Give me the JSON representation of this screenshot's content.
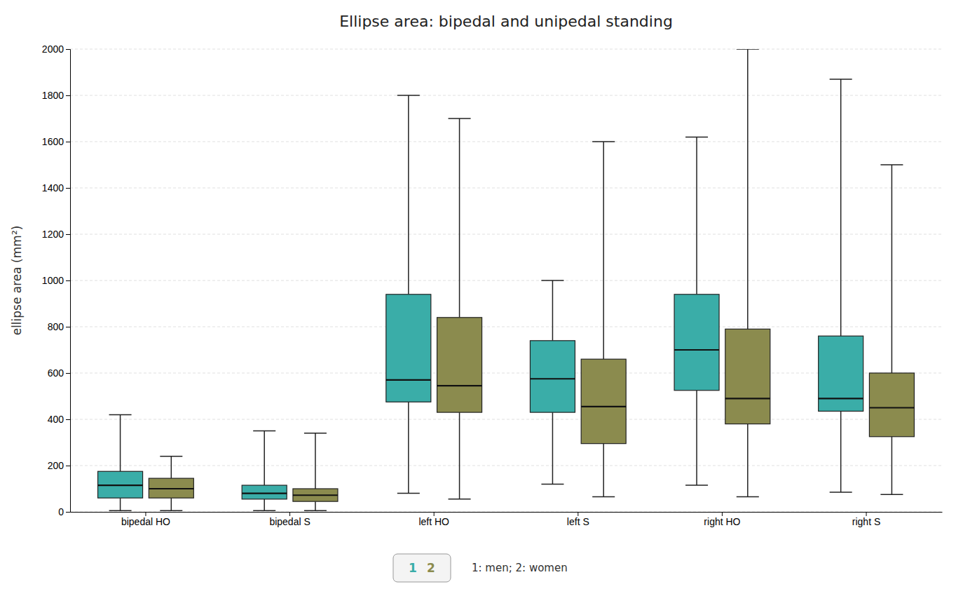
{
  "chart_data": {
    "type": "box",
    "title": "Ellipse area: bipedal and unipedal standing",
    "ylabel": "ellipse area (mm²)",
    "categories": [
      "bipedal HO",
      "bipedal S",
      "left HO",
      "left S",
      "right HO",
      "right S"
    ],
    "series": [
      {
        "name": "1",
        "color": "#3aada8",
        "q1": [
          60,
          55,
          475,
          430,
          525,
          435
        ],
        "median": [
          115,
          80,
          570,
          575,
          700,
          490
        ],
        "q3": [
          175,
          115,
          940,
          740,
          940,
          760
        ],
        "whislo": [
          5,
          5,
          80,
          120,
          115,
          85
        ],
        "whishi": [
          420,
          350,
          1800,
          1000,
          1620,
          1870
        ]
      },
      {
        "name": "2",
        "color": "#8b8b4e",
        "q1": [
          60,
          45,
          430,
          295,
          380,
          325
        ],
        "median": [
          100,
          72,
          545,
          455,
          490,
          450
        ],
        "q3": [
          145,
          100,
          840,
          660,
          790,
          600
        ],
        "whislo": [
          5,
          5,
          55,
          65,
          65,
          75
        ],
        "whishi": [
          240,
          340,
          1700,
          1600,
          2000,
          1500
        ]
      }
    ],
    "annotations": [
      "1: men; 2: women"
    ],
    "ylim": [
      0,
      2000
    ],
    "yticks": [
      0,
      200,
      400,
      600,
      800,
      1000,
      1200,
      1400,
      1600,
      1800,
      2000
    ],
    "grid": true,
    "legend": "bottom"
  }
}
